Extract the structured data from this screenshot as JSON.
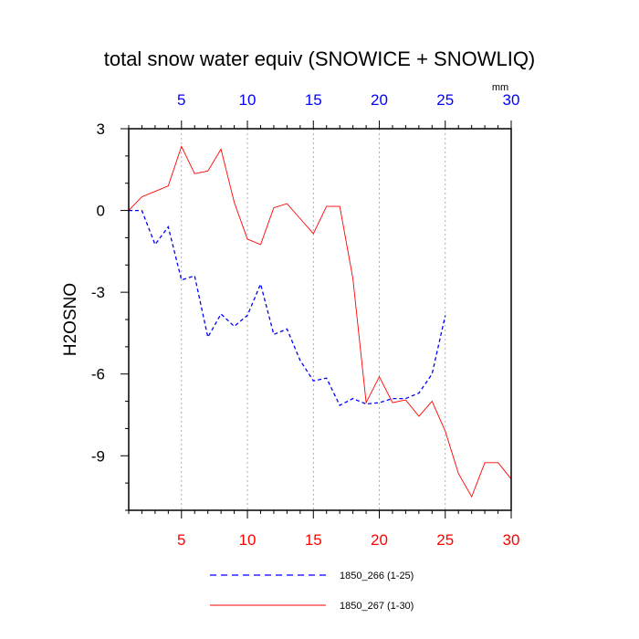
{
  "chart_data": {
    "type": "line",
    "title": "total snow water equiv (SNOWICE + SNOWLIQ)",
    "ylabel": "H2OSNO",
    "units": "mm",
    "xlim": [
      1,
      30
    ],
    "ylim": [
      -11,
      3
    ],
    "yticks": [
      3,
      0,
      -3,
      -6,
      -9
    ],
    "xticks": [
      5,
      10,
      15,
      20,
      25,
      30
    ],
    "grid": "vertical dashed",
    "colors": {
      "series_1": "#0000ff",
      "series_2": "#ff0000"
    },
    "series": [
      {
        "name": "1850_266 (1-25)",
        "style": "dashed",
        "x": [
          1,
          2,
          3,
          4,
          5,
          6,
          7,
          8,
          9,
          10,
          11,
          12,
          13,
          14,
          15,
          16,
          17,
          18,
          19,
          20,
          21,
          22,
          23,
          24,
          25
        ],
        "y": [
          0.0,
          0.0,
          -1.25,
          -0.6,
          -2.55,
          -2.4,
          -4.65,
          -3.8,
          -4.25,
          -3.85,
          -2.7,
          -4.55,
          -4.35,
          -5.5,
          -6.25,
          -6.15,
          -7.15,
          -6.9,
          -7.1,
          -7.05,
          -6.9,
          -6.9,
          -6.7,
          -6.0,
          -3.85
        ]
      },
      {
        "name": "1850_267 (1-30)",
        "style": "solid",
        "x": [
          1,
          2,
          3,
          4,
          5,
          6,
          7,
          8,
          9,
          10,
          11,
          12,
          13,
          14,
          15,
          16,
          17,
          18,
          19,
          20,
          21,
          22,
          23,
          24,
          25,
          26,
          27,
          28,
          29,
          30
        ],
        "y": [
          0.0,
          0.5,
          0.7,
          0.9,
          2.35,
          1.35,
          1.45,
          2.25,
          0.3,
          -1.05,
          -1.25,
          0.1,
          0.25,
          -0.3,
          -0.85,
          0.15,
          0.15,
          -2.5,
          -7.05,
          -6.1,
          -7.05,
          -6.95,
          -7.55,
          -7.0,
          -8.1,
          -9.65,
          -10.5,
          -9.25,
          -9.25,
          -9.85
        ]
      }
    ]
  }
}
